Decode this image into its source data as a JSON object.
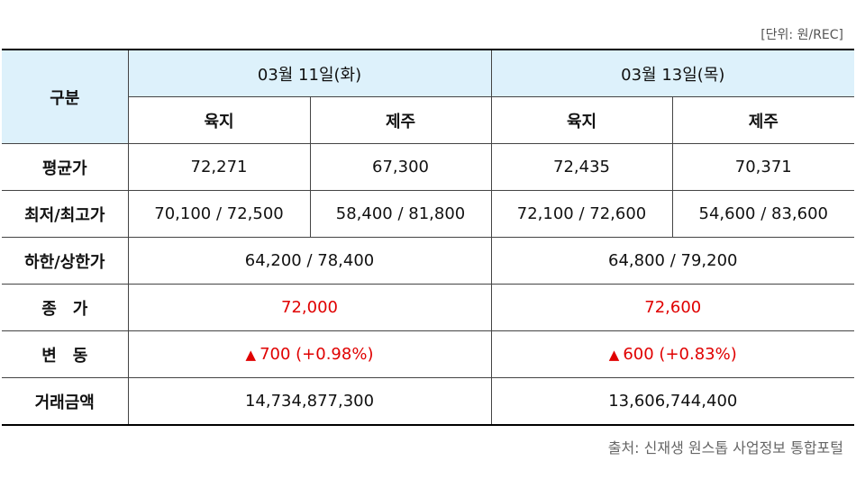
{
  "unit_note": "[단위: 원/REC]",
  "source_note": "출처: 신재생 원스톱 사업정보 통합포털",
  "table": {
    "corner_label": "구분",
    "dates": [
      "03월 11일(화)",
      "03월 13일(목)"
    ],
    "regions": [
      "육지",
      "제주",
      "육지",
      "제주"
    ],
    "rows": {
      "avg": {
        "label": "평균가",
        "values": [
          "72,271",
          "67,300",
          "72,435",
          "70,371"
        ]
      },
      "minmax": {
        "label": "최저/최고가",
        "values": [
          "70,100 / 72,500",
          "58,400 / 81,800",
          "72,100 / 72,600",
          "54,600 / 83,600"
        ]
      },
      "limits": {
        "label": "하한/상한가",
        "values": [
          "64,200 / 78,400",
          "64,800 / 79,200"
        ]
      },
      "close": {
        "label": "종　가",
        "values": [
          "72,000",
          "72,600"
        ]
      },
      "change": {
        "label": "변　동",
        "symbol": "▲",
        "values": [
          "700 (+0.98%)",
          "600 (+0.83%)"
        ]
      },
      "volume": {
        "label": "거래금액",
        "values": [
          "14,734,877,300",
          "13,606,744,400"
        ]
      }
    }
  },
  "colors": {
    "header_bg": "#ddf1fb",
    "highlight": "#e00000"
  }
}
